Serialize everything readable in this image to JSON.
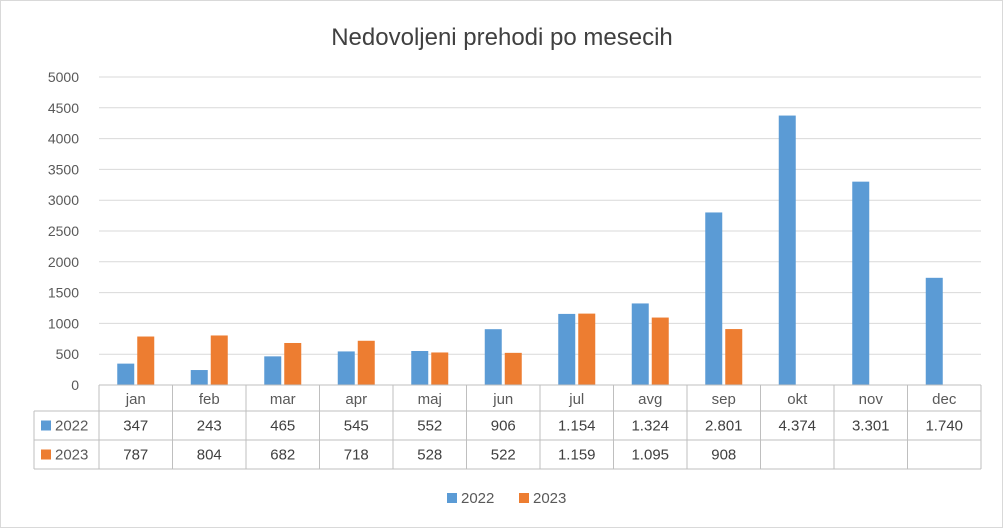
{
  "chart_data": {
    "type": "bar",
    "title": "Nedovoljeni prehodi po mesecih",
    "categories": [
      "jan",
      "feb",
      "mar",
      "apr",
      "maj",
      "jun",
      "jul",
      "avg",
      "sep",
      "okt",
      "nov",
      "dec"
    ],
    "series": [
      {
        "name": "2022",
        "color": "#5b9bd5",
        "values": [
          347,
          243,
          465,
          545,
          552,
          906,
          1154,
          1324,
          2801,
          4374,
          3301,
          1740
        ],
        "labels": [
          "347",
          "243",
          "465",
          "545",
          "552",
          "906",
          "1.154",
          "1.324",
          "2.801",
          "4.374",
          "3.301",
          "1.740"
        ]
      },
      {
        "name": "2023",
        "color": "#ed7d31",
        "values": [
          787,
          804,
          682,
          718,
          528,
          522,
          1159,
          1095,
          908,
          null,
          null,
          null
        ],
        "labels": [
          "787",
          "804",
          "682",
          "718",
          "528",
          "522",
          "1.159",
          "1.095",
          "908",
          "",
          "",
          ""
        ]
      }
    ],
    "yticks": [
      "0",
      "500",
      "1000",
      "1500",
      "2000",
      "2500",
      "3000",
      "3500",
      "4000",
      "4500",
      "5000"
    ],
    "ylim": [
      0,
      5000
    ],
    "grid": true,
    "legend": "bottom",
    "data_table": true
  }
}
